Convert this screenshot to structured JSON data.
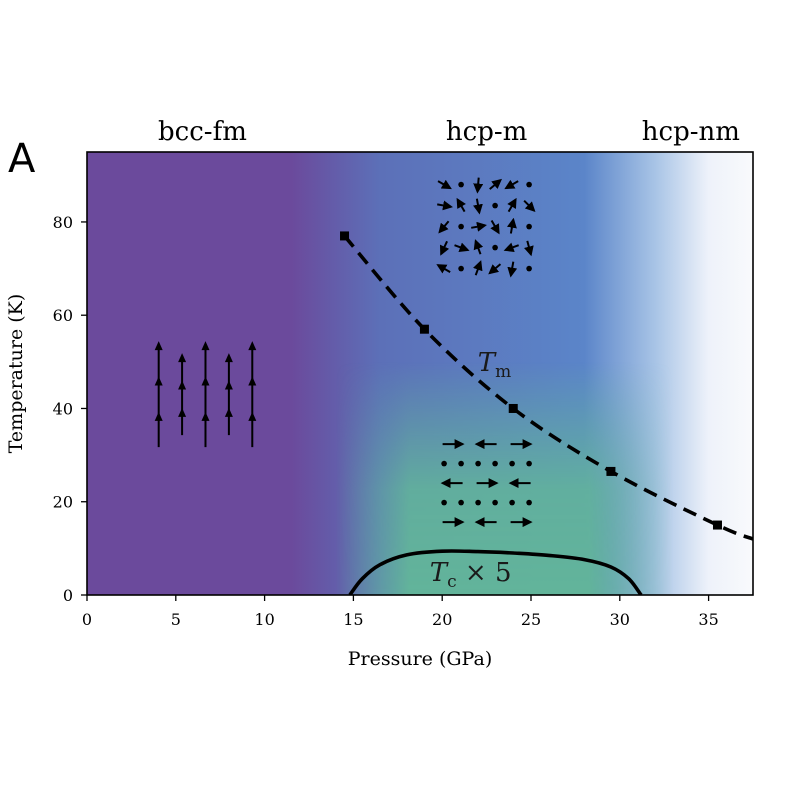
{
  "panel_label": "A",
  "chart_data": {
    "type": "line",
    "xlabel": "Pressure (GPa)",
    "ylabel": "Temperature (K)",
    "xlim": [
      0,
      37.5
    ],
    "ylim": [
      0,
      95
    ],
    "xticks": [
      0,
      5,
      10,
      15,
      20,
      25,
      30,
      35
    ],
    "yticks": [
      0,
      20,
      40,
      60,
      80
    ],
    "phase_labels": [
      {
        "text": "bcc-fm",
        "pressure": 6.5
      },
      {
        "text": "hcp-m",
        "pressure": 22.5
      },
      {
        "text": "hcp-nm",
        "pressure": 34.0
      }
    ],
    "background_gradient": [
      {
        "pressure": 0,
        "color": "#6b4a9c"
      },
      {
        "pressure": 11.5,
        "color": "#6b4a9c"
      },
      {
        "pressure": 16.5,
        "color": "#5c70b8"
      },
      {
        "pressure": 28,
        "color": "#5b85c9"
      },
      {
        "pressure": 32,
        "color": "#a8c4e6"
      },
      {
        "pressure": 35,
        "color": "#eef2fa"
      },
      {
        "pressure": 37.5,
        "color": "#f9fafc"
      }
    ],
    "lower_tint": {
      "color": "#62b49a",
      "pressure_range": [
        14,
        33
      ],
      "temperature_top": 50
    },
    "series": [
      {
        "name": "T_m",
        "style": "dashed",
        "color": "#000000",
        "marker": "square",
        "x": [
          14.5,
          19.0,
          24.0,
          29.5,
          35.5,
          37.5
        ],
        "y": [
          77,
          57,
          40,
          26.5,
          15,
          12
        ],
        "marker_count": 5
      },
      {
        "name": "T_c x 5",
        "style": "solid",
        "color": "#000000",
        "marker": "none",
        "x": [
          14.8,
          15.5,
          16.5,
          18.0,
          20.0,
          22.0,
          24.0,
          26.0,
          28.0,
          29.5,
          30.5,
          31.2
        ],
        "y": [
          0,
          3.5,
          6.5,
          8.6,
          9.4,
          9.3,
          9.0,
          8.5,
          7.6,
          6.0,
          3.5,
          0
        ]
      }
    ],
    "annotations": [
      {
        "id": "tm",
        "main": "T",
        "sub": "m",
        "suffix": "",
        "pressure": 22.0,
        "temperature": 48
      },
      {
        "id": "tc",
        "main": "T",
        "sub": "c",
        "suffix": " × 5",
        "pressure": 19.3,
        "temperature": 3
      }
    ],
    "spin_insets": [
      {
        "type": "ferromagnetic",
        "center_pressure": 8.8,
        "center_temperature": 42
      },
      {
        "type": "disordered",
        "center_pressure": 22.5,
        "center_temperature": 79
      },
      {
        "type": "striped",
        "center_pressure": 22.5,
        "center_temperature": 24
      }
    ]
  }
}
